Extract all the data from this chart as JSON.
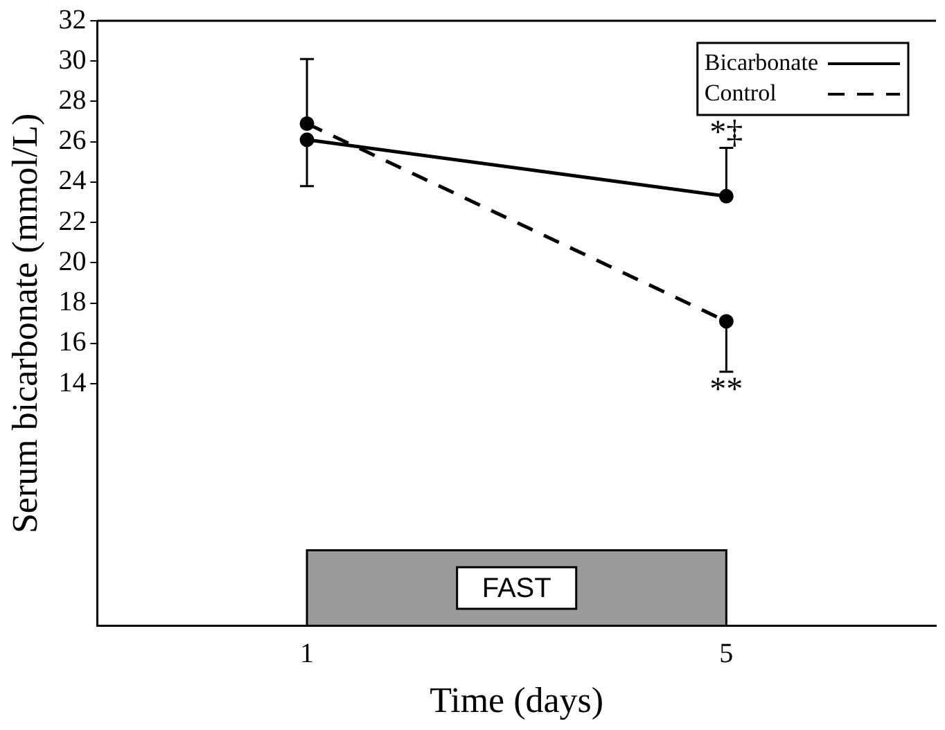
{
  "chart_data": {
    "type": "line",
    "xlabel": "Time (days)",
    "ylabel": "Serum bicarbonate (mmol/L)",
    "x": [
      1,
      5
    ],
    "xlim": [
      -1,
      7
    ],
    "xticks": [
      1,
      5
    ],
    "ylim": [
      2,
      32
    ],
    "yticks": [
      14,
      16,
      18,
      20,
      22,
      24,
      26,
      28,
      30,
      32
    ],
    "grid": false,
    "legend": "top right",
    "marker": "circle",
    "series": [
      {
        "name": "Bicarbonate",
        "color": "#000000",
        "values": [
          26.1,
          23.3
        ],
        "line_style": "solid",
        "errors": [
          [
            23.8,
            26.1
          ],
          [
            23.3,
            25.7
          ]
        ]
      },
      {
        "name": "Control",
        "color": "#000000",
        "values": [
          26.9,
          17.1
        ],
        "line_style": "dashed",
        "errors": [
          [
            26.9,
            30.1
          ],
          [
            14.6,
            17.1
          ]
        ]
      }
    ],
    "bands": [
      {
        "axis": "x",
        "from": 1,
        "to": 5,
        "label": "FAST",
        "color": "#9a9a9a"
      }
    ],
    "annotations": [
      {
        "text": "*‡",
        "x": 5,
        "y": 25.7
      },
      {
        "text": "**",
        "x": 5,
        "y": 14.6
      }
    ]
  }
}
